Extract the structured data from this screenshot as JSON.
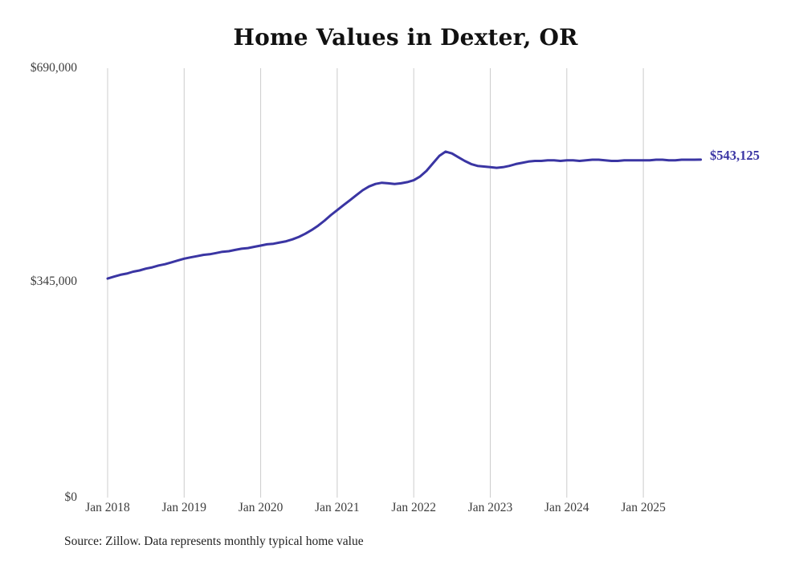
{
  "title": "Home Values in Dexter, OR",
  "source_note": "Source: Zillow. Data represents monthly typical home value",
  "colors": {
    "line": "#3a35a3",
    "grid": "#cccccc",
    "axis_text": "#3d3d3d",
    "title_text": "#111111"
  },
  "chart_data": {
    "type": "line",
    "title": "Home Values in Dexter, OR",
    "xlabel": "",
    "ylabel": "",
    "ylim": [
      0,
      690000
    ],
    "grid": "vertical-only",
    "legend": "none",
    "line_color": "#3a35a3",
    "y_ticks": [
      {
        "value": 0,
        "label": "$0"
      },
      {
        "value": 345000,
        "label": "$345,000"
      },
      {
        "value": 690000,
        "label": "$690,000"
      }
    ],
    "x_ticks": [
      "Jan 2018",
      "Jan 2019",
      "Jan 2020",
      "Jan 2021",
      "Jan 2022",
      "Jan 2023",
      "Jan 2024",
      "Jan 2025"
    ],
    "end_value": 543125,
    "end_label": "$543,125",
    "series": [
      {
        "name": "Typical home value (monthly)",
        "start_month": "2018-01",
        "end_month": "2025-10",
        "values": [
          352000,
          355000,
          358000,
          360000,
          363000,
          365000,
          368000,
          370000,
          373000,
          375000,
          378000,
          381000,
          384000,
          386000,
          388000,
          390000,
          391000,
          393000,
          395000,
          396000,
          398000,
          400000,
          401000,
          403000,
          405000,
          407000,
          408000,
          410000,
          412000,
          415000,
          419000,
          424000,
          430000,
          437000,
          445000,
          454000,
          462000,
          470000,
          478000,
          486000,
          494000,
          500000,
          504000,
          506000,
          505000,
          504000,
          505000,
          507000,
          510000,
          516000,
          525000,
          537000,
          549000,
          556000,
          553000,
          547000,
          541000,
          536000,
          533000,
          532000,
          531000,
          530000,
          531000,
          533000,
          536000,
          538000,
          540000,
          541000,
          541000,
          542000,
          542000,
          541000,
          542000,
          542000,
          541000,
          542000,
          543000,
          543000,
          542000,
          541000,
          541000,
          542000,
          542000,
          542000,
          542000,
          542000,
          543000,
          543000,
          542000,
          542000,
          543000,
          543000,
          543000,
          543125
        ]
      }
    ]
  }
}
